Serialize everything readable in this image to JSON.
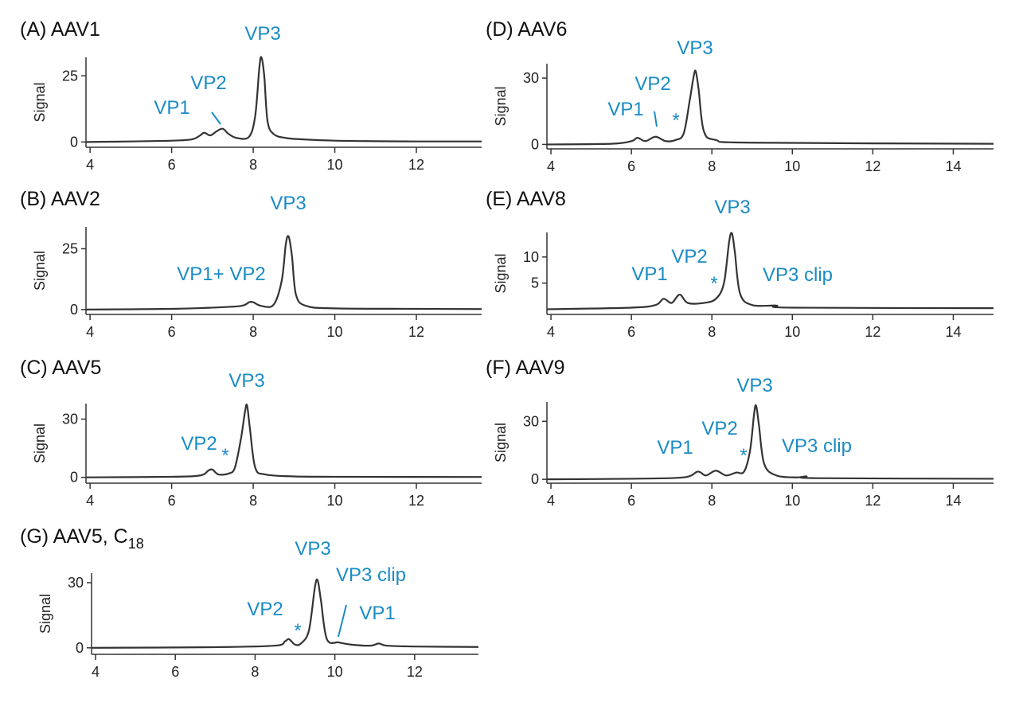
{
  "chart_data": [
    {
      "type": "line",
      "title": "(A)  AAV1",
      "ylabel": "Signal",
      "color": "#333333",
      "x": [
        3.9,
        5,
        6,
        6.5,
        6.7,
        6.8,
        6.95,
        7.1,
        7.25,
        7.4,
        7.6,
        7.9,
        8.05,
        8.15,
        8.2,
        8.27,
        8.35,
        8.5,
        8.8,
        9.2,
        10,
        11,
        12,
        13.6
      ],
      "values": [
        0,
        0.2,
        0.5,
        1,
        2.5,
        3.5,
        2.5,
        4,
        5,
        3,
        1.5,
        2,
        10,
        28,
        32,
        25,
        8,
        3,
        1.5,
        1,
        0.5,
        0.3,
        0.2,
        0.2
      ],
      "xlim": [
        3.9,
        13.6
      ],
      "ylim": [
        -2,
        32
      ],
      "xticks": [
        4,
        6,
        8,
        10,
        12
      ],
      "yticks": [
        0,
        25
      ],
      "annotations": [
        "VP3",
        "VP2",
        "VP1"
      ]
    },
    {
      "type": "line",
      "title": "(B)  AAV2",
      "ylabel": "Signal",
      "color": "#333333",
      "x": [
        3.9,
        6,
        7,
        7.7,
        7.9,
        8,
        8.2,
        8.5,
        8.7,
        8.8,
        8.87,
        8.95,
        9.05,
        9.3,
        10,
        12,
        13.6
      ],
      "values": [
        0,
        0.3,
        0.8,
        1.5,
        3,
        3,
        1.5,
        2,
        12,
        27,
        30,
        22,
        6,
        1.5,
        0.5,
        0.3,
        0.2
      ],
      "xlim": [
        3.9,
        13.6
      ],
      "ylim": [
        -2,
        34
      ],
      "xticks": [
        4,
        6,
        8,
        10,
        12
      ],
      "yticks": [
        0,
        25
      ],
      "annotations": [
        "VP3",
        "VP1+ VP2"
      ]
    },
    {
      "type": "line",
      "title": "(C)  AAV5",
      "ylabel": "Signal",
      "color": "#333333",
      "x": [
        3.9,
        6,
        6.7,
        6.9,
        7,
        7.15,
        7.4,
        7.55,
        7.7,
        7.8,
        7.85,
        7.92,
        8.05,
        8.3,
        9,
        10,
        13.6
      ],
      "values": [
        0,
        0.3,
        1,
        3.5,
        4,
        1.5,
        2,
        5,
        20,
        34,
        37,
        25,
        5,
        1.5,
        0.5,
        0.3,
        0.2
      ],
      "xlim": [
        3.9,
        13.6
      ],
      "ylim": [
        -3,
        38
      ],
      "xticks": [
        4,
        6,
        8,
        10,
        12
      ],
      "yticks": [
        0,
        30
      ],
      "annotations": [
        "VP3",
        "VP2",
        "*"
      ]
    },
    {
      "type": "line",
      "title": "(G)  AAV5, C",
      "title_subscript": "18",
      "ylabel": "Signal",
      "color": "#333333",
      "x": [
        3.9,
        7,
        8.5,
        8.75,
        8.85,
        9,
        9.15,
        9.35,
        9.5,
        9.57,
        9.65,
        9.8,
        10.1,
        10.4,
        10.9,
        11.1,
        11.3,
        12,
        13.6
      ],
      "values": [
        0,
        0.3,
        1,
        3,
        4,
        1.5,
        2,
        8,
        28,
        31,
        22,
        4,
        2.5,
        1.5,
        1,
        2,
        1,
        0.6,
        0.4
      ],
      "xlim": [
        3.9,
        13.6
      ],
      "ylim": [
        -3,
        34.4
      ],
      "xticks": [
        4,
        6,
        8,
        10,
        12
      ],
      "yticks": [
        0,
        30
      ],
      "annotations": [
        "VP3",
        "VP3 clip",
        "VP2",
        "*",
        "VP1"
      ]
    },
    {
      "type": "line",
      "title": "(D) AAV6",
      "ylabel": "Signal",
      "color": "#333333",
      "x": [
        3.9,
        5.5,
        6,
        6.15,
        6.35,
        6.6,
        6.85,
        7.1,
        7.3,
        7.45,
        7.55,
        7.6,
        7.67,
        7.8,
        8.1,
        9,
        15
      ],
      "values": [
        0,
        0.3,
        1.5,
        3,
        1.5,
        3.5,
        1.5,
        2,
        5,
        20,
        31,
        33,
        25,
        6,
        2,
        0.8,
        0.3
      ],
      "xlim": [
        3.9,
        15
      ],
      "ylim": [
        -2,
        36.5
      ],
      "xticks": [
        4,
        6,
        8,
        10,
        12,
        14
      ],
      "yticks": [
        0,
        30
      ],
      "annotations": [
        "VP3",
        "VP2",
        "VP1",
        "*"
      ]
    },
    {
      "type": "line",
      "title": "(E) AAV8",
      "ylabel": "Signal",
      "color": "#333333",
      "x": [
        3.9,
        6,
        6.6,
        6.8,
        7,
        7.2,
        7.4,
        7.8,
        8.1,
        8.3,
        8.43,
        8.5,
        8.57,
        8.7,
        9,
        9.6,
        10,
        15
      ],
      "values": [
        0,
        0.3,
        0.8,
        2,
        1.2,
        2.8,
        1.2,
        1.2,
        2,
        5,
        13,
        14.5,
        11,
        3,
        0.8,
        0.7,
        0.3,
        0.2
      ],
      "xlim": [
        3.9,
        15
      ],
      "ylim": [
        -1,
        14.7
      ],
      "xticks": [
        4,
        6,
        8,
        10,
        12,
        14
      ],
      "yticks": [
        5,
        10
      ],
      "annotations": [
        "VP3",
        "VP2",
        "VP1",
        "*",
        "VP3 clip"
      ]
    },
    {
      "type": "line",
      "title": "(F)  AAV9",
      "ylabel": "Signal",
      "color": "#333333",
      "x": [
        3.9,
        6,
        7.3,
        7.65,
        7.85,
        8.1,
        8.35,
        8.6,
        8.8,
        8.95,
        9.05,
        9.1,
        9.17,
        9.3,
        9.6,
        10.1,
        10.35,
        10.6,
        15
      ],
      "values": [
        0,
        0.3,
        1,
        4,
        2,
        4.5,
        2,
        3.5,
        4,
        15,
        34,
        38,
        28,
        8,
        2,
        1,
        1.5,
        0.6,
        0.3
      ],
      "xlim": [
        3.9,
        15
      ],
      "ylim": [
        -2,
        40
      ],
      "xticks": [
        4,
        6,
        8,
        10,
        12,
        14
      ],
      "yticks": [
        0,
        30
      ],
      "annotations": [
        "VP3",
        "VP2",
        "VP1",
        "*",
        "VP3 clip"
      ]
    }
  ]
}
